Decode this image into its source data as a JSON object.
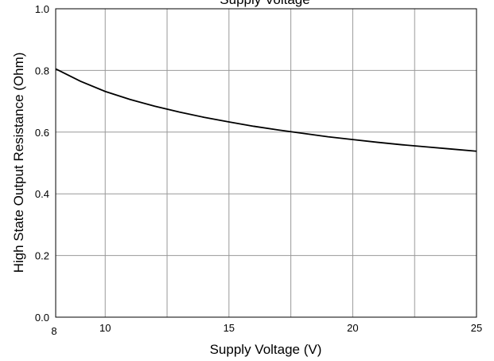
{
  "chart_data": {
    "type": "line",
    "title": "Supply Voltage",
    "xlabel": "Supply Voltage (V)",
    "ylabel": "High State Output Resistance (Ohm)",
    "xlim": [
      8,
      25
    ],
    "ylim": [
      0.0,
      1.0
    ],
    "x_ticks": [
      8,
      10,
      15,
      20,
      25
    ],
    "x_tick_labels": [
      "8",
      "10",
      "15",
      "20",
      "25"
    ],
    "x_gridlines": [
      8,
      10,
      12.5,
      15,
      17.5,
      20,
      22.5,
      25
    ],
    "y_ticks": [
      0.0,
      0.2,
      0.4,
      0.6,
      0.8,
      1.0
    ],
    "y_tick_labels": [
      "0.0",
      "0.2",
      "0.4",
      "0.6",
      "0.8",
      "1.0"
    ],
    "grid": true,
    "series": [
      {
        "x": [
          8,
          9,
          10,
          11,
          12,
          13,
          14,
          15,
          16,
          17,
          18,
          19,
          20,
          21,
          22,
          23,
          24,
          25
        ],
        "values": [
          0.805,
          0.765,
          0.732,
          0.706,
          0.684,
          0.665,
          0.648,
          0.633,
          0.619,
          0.607,
          0.596,
          0.585,
          0.576,
          0.567,
          0.559,
          0.552,
          0.545,
          0.538
        ]
      }
    ],
    "colors": {
      "line": "#000000",
      "grid": "#999999",
      "frame": "#000000"
    }
  }
}
